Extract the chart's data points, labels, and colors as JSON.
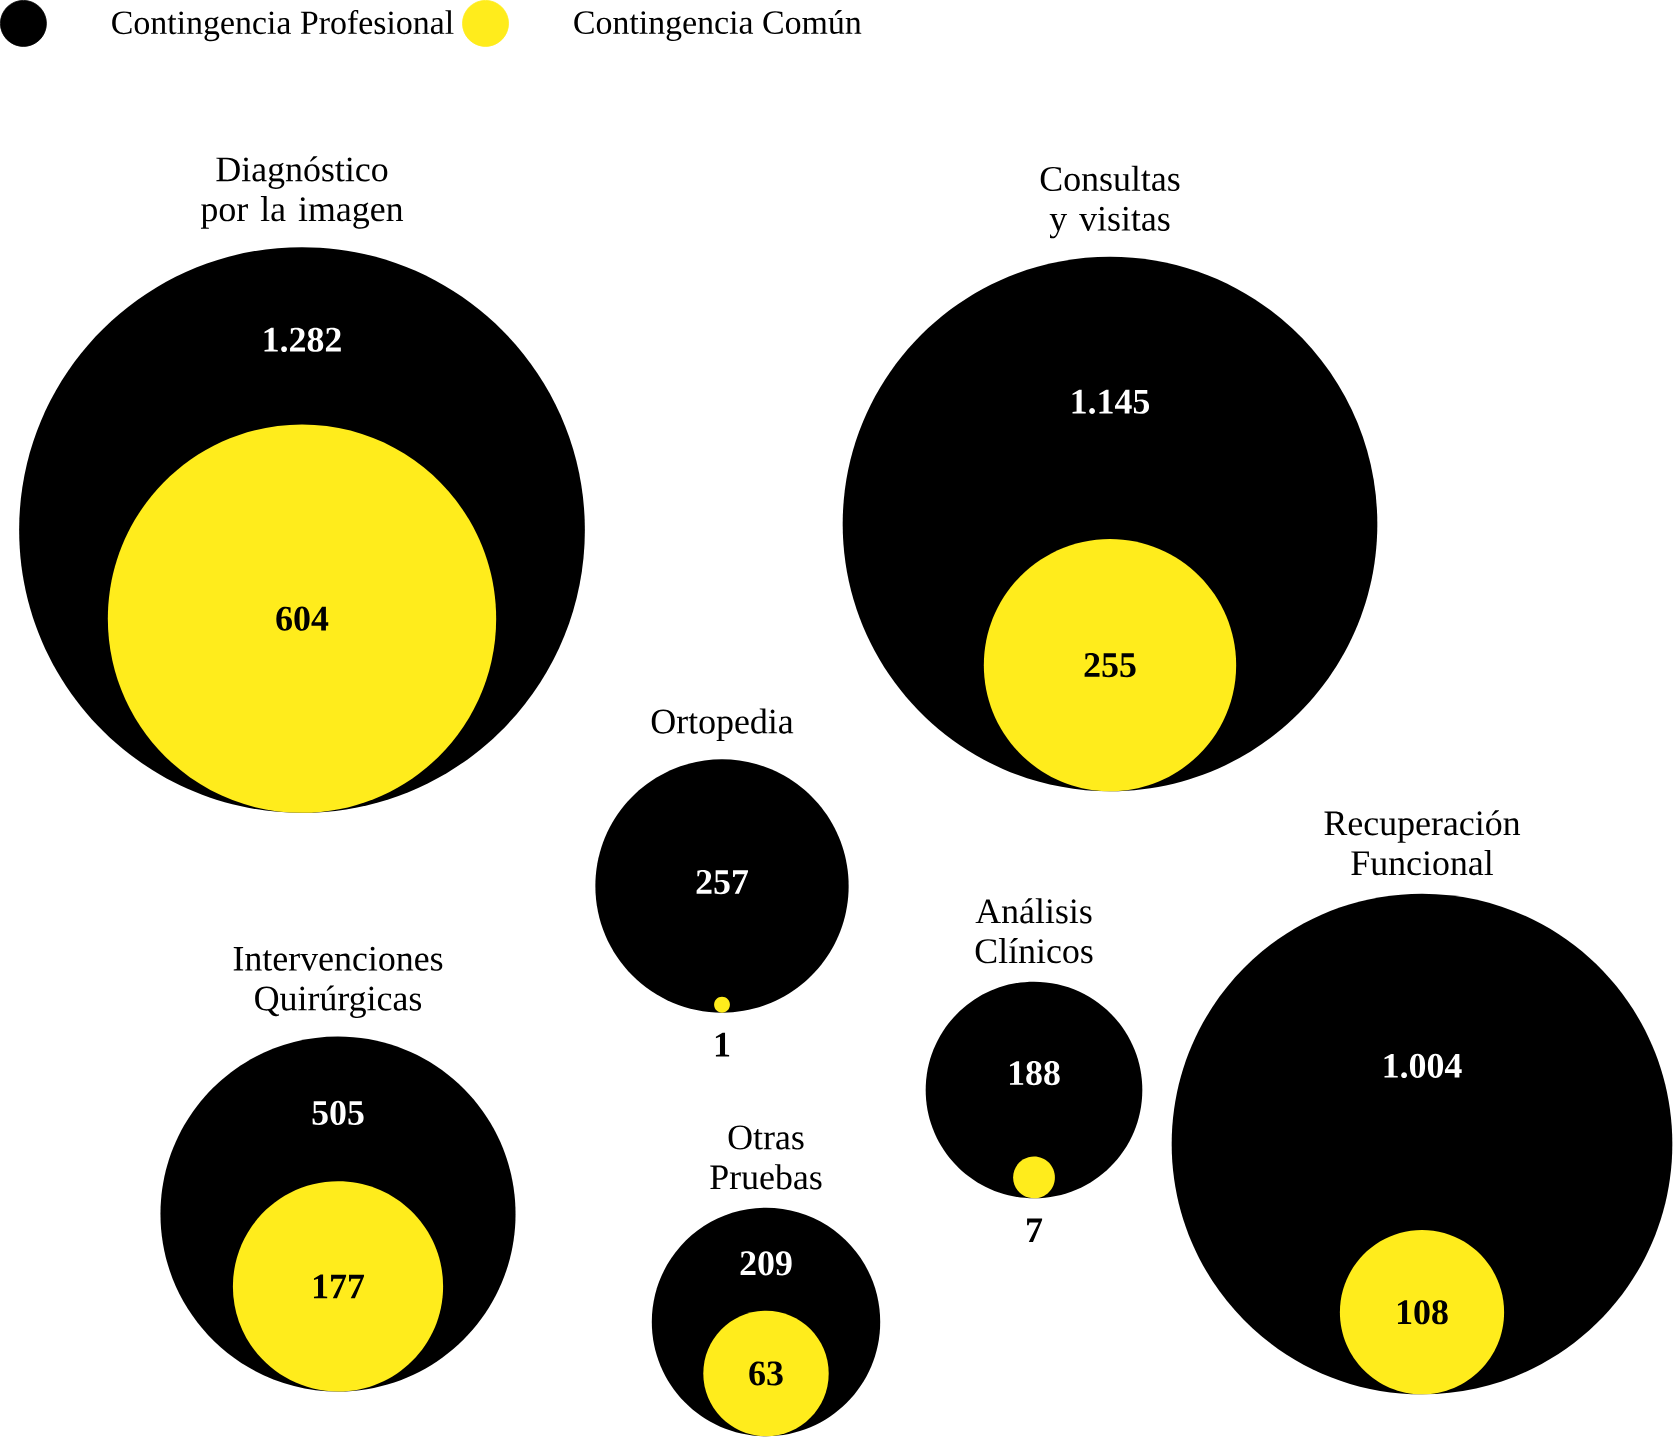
{
  "chart_data": {
    "type": "other",
    "categories": [
      "Diagnóstico por la imagen",
      "Consultas y visitas",
      "Ortopedia",
      "Recuperación Funcional",
      "Análisis Clínicos",
      "Intervenciones Quirúrgicas",
      "Otras Pruebas"
    ],
    "series": [
      {
        "name": "Contingencia Profesional",
        "color": "#000000",
        "values": [
          1282,
          1145,
          257,
          1004,
          188,
          505,
          209
        ],
        "value_labels": [
          "1.282",
          "1.145",
          "257",
          "1.004",
          "188",
          "505",
          "209"
        ]
      },
      {
        "name": "Contingencia Común",
        "color": "#ffec1c",
        "values": [
          604,
          255,
          1,
          108,
          7,
          177,
          63
        ],
        "value_labels": [
          "604",
          "255",
          "1",
          "108",
          "7",
          "177",
          "63"
        ]
      }
    ],
    "legend": "top left"
  }
}
